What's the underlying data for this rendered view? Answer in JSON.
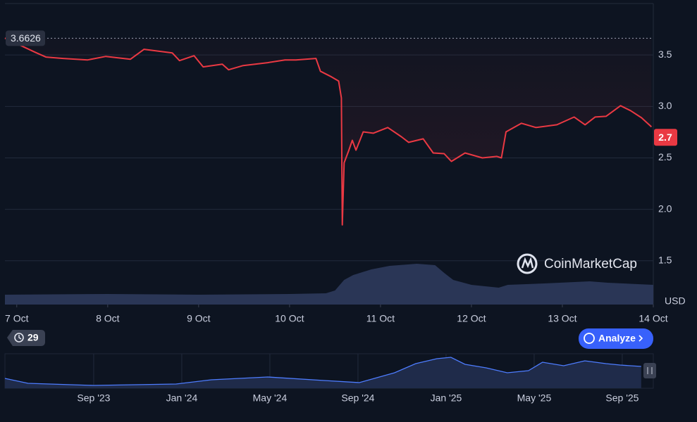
{
  "chart_data": {
    "type": "line",
    "color": "#ea3943",
    "currency": "USD",
    "watermark": "CoinMarketCap",
    "reference_price": 3.6626,
    "last_price": 2.7,
    "history_badge": 29,
    "analyze_button": "Analyze",
    "xlim": [
      6.87,
      14
    ],
    "xticks": [
      {
        "value": 7,
        "label": "7 Oct"
      },
      {
        "value": 8,
        "label": "8 Oct"
      },
      {
        "value": 9,
        "label": "9 Oct"
      },
      {
        "value": 10,
        "label": "10 Oct"
      },
      {
        "value": 11,
        "label": "11 Oct"
      },
      {
        "value": 12,
        "label": "12 Oct"
      },
      {
        "value": 13,
        "label": "13 Oct"
      },
      {
        "value": 14,
        "label": "14 Oct"
      }
    ],
    "ylim": [
      1.075,
      4.0
    ],
    "yticks": [
      1.5,
      {
        "value": 2,
        "label": "2.0"
      },
      2.5,
      {
        "value": 3,
        "label": "3.0"
      },
      3.5
    ],
    "grid": true,
    "x": [
      6.87,
      7.2,
      7.32,
      7.51,
      7.78,
      7.98,
      8.25,
      8.4,
      8.71,
      8.79,
      8.95,
      9.05,
      9.26,
      9.33,
      9.49,
      9.76,
      9.95,
      10.07,
      10.29,
      10.34,
      10.46,
      10.54,
      10.57,
      10.58,
      10.6,
      10.65,
      10.69,
      10.73,
      10.81,
      10.92,
      11.08,
      11.23,
      11.31,
      11.47,
      11.58,
      11.7,
      11.78,
      11.93,
      12.12,
      12.28,
      12.33,
      12.38,
      12.55,
      12.71,
      12.94,
      13.13,
      13.25,
      13.36,
      13.48,
      13.64,
      13.75,
      13.87,
      13.98
    ],
    "values": [
      3.664,
      3.527,
      3.48,
      3.466,
      3.452,
      3.486,
      3.459,
      3.555,
      3.52,
      3.445,
      3.493,
      3.384,
      3.411,
      3.356,
      3.397,
      3.425,
      3.452,
      3.452,
      3.466,
      3.342,
      3.288,
      3.247,
      3.082,
      1.849,
      2.452,
      2.568,
      2.671,
      2.575,
      2.753,
      2.74,
      2.795,
      2.705,
      2.651,
      2.685,
      2.548,
      2.541,
      2.466,
      2.548,
      2.5,
      2.514,
      2.5,
      2.753,
      2.836,
      2.795,
      2.822,
      2.897,
      2.822,
      2.897,
      2.904,
      3.007,
      2.959,
      2.89,
      2.801
    ],
    "volume": {
      "color": "#2a3656",
      "x": [
        6.87,
        8,
        9,
        10,
        10.4,
        10.5,
        10.6,
        10.7,
        10.9,
        11.1,
        11.4,
        11.6,
        11.7,
        11.8,
        12.0,
        12.3,
        12.4,
        12.8,
        13.3,
        13.5,
        14
      ],
      "values": [
        14,
        15,
        14,
        15,
        16,
        20,
        35,
        42,
        50,
        55,
        58,
        56,
        45,
        35,
        28,
        24,
        28,
        30,
        33,
        31,
        28
      ]
    },
    "navigator": {
      "color": "#4d7cfe",
      "xlim": [
        -4.03,
        25.41
      ],
      "xticks": [
        {
          "value": 0,
          "label": "Sep '23"
        },
        {
          "value": 4,
          "label": "Jan '24"
        },
        {
          "value": 8,
          "label": "May '24"
        },
        {
          "value": 12,
          "label": "Sep '24"
        },
        {
          "value": 16,
          "label": "Jan '25"
        },
        {
          "value": 20,
          "label": "May '25"
        },
        {
          "value": 24,
          "label": "Sep '25"
        }
      ],
      "x": [
        -4.03,
        -2.98,
        0,
        3.74,
        5.34,
        7.9,
        10.46,
        12.06,
        13.66,
        14.62,
        15.58,
        16.22,
        16.86,
        17.82,
        18.78,
        19.74,
        20.38,
        21.34,
        22.3,
        23.26,
        23.9,
        24.86
      ],
      "values": [
        14,
        7,
        4,
        6,
        12,
        16,
        11,
        8,
        22,
        35,
        42,
        44,
        34,
        29,
        22,
        25,
        37,
        32,
        39,
        35,
        33,
        31
      ]
    }
  }
}
